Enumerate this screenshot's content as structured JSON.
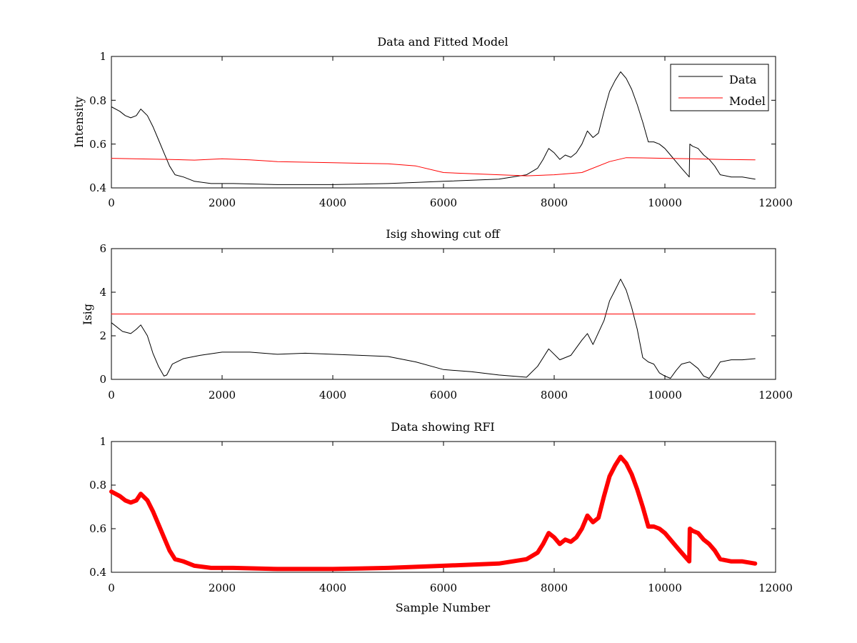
{
  "chart_data": [
    {
      "type": "line",
      "title": "Data and Fitted Model",
      "xlabel": "",
      "ylabel": "Intensity",
      "xlim": [
        0,
        12000
      ],
      "ylim": [
        0.4,
        1
      ],
      "xticks": [
        0,
        2000,
        4000,
        6000,
        8000,
        10000,
        12000
      ],
      "yticks": [
        0.4,
        0.6,
        0.8,
        1
      ],
      "xtick_labels": [
        "0",
        "2000",
        "4000",
        "6000",
        "8000",
        "10000",
        "12000"
      ],
      "ytick_labels": [
        "0.4",
        "0.6",
        "0.8",
        "1"
      ],
      "legend": "top-right",
      "grid": false,
      "series": [
        {
          "name": "Data",
          "color": "#000000",
          "x": [
            0,
            150,
            250,
            350,
            450,
            530,
            650,
            750,
            850,
            950,
            1050,
            1150,
            1300,
            1500,
            1800,
            2200,
            3000,
            4000,
            5000,
            6000,
            7000,
            7500,
            7700,
            7800,
            7900,
            8000,
            8100,
            8200,
            8300,
            8400,
            8500,
            8600,
            8700,
            8800,
            8900,
            9000,
            9100,
            9200,
            9300,
            9400,
            9500,
            9600,
            9700,
            9800,
            9900,
            10000,
            10100,
            10200,
            10300,
            10440,
            10450,
            10500,
            10600,
            10700,
            10800,
            10900,
            11000,
            11200,
            11400,
            11630
          ],
          "y": [
            0.77,
            0.75,
            0.73,
            0.72,
            0.73,
            0.76,
            0.73,
            0.68,
            0.62,
            0.56,
            0.5,
            0.46,
            0.45,
            0.43,
            0.42,
            0.42,
            0.415,
            0.415,
            0.42,
            0.43,
            0.44,
            0.46,
            0.49,
            0.53,
            0.58,
            0.56,
            0.53,
            0.55,
            0.54,
            0.56,
            0.6,
            0.66,
            0.63,
            0.65,
            0.75,
            0.84,
            0.89,
            0.93,
            0.9,
            0.85,
            0.78,
            0.7,
            0.61,
            0.61,
            0.6,
            0.58,
            0.55,
            0.52,
            0.49,
            0.45,
            0.6,
            0.59,
            0.58,
            0.55,
            0.53,
            0.5,
            0.46,
            0.45,
            0.45,
            0.44
          ]
        },
        {
          "name": "Model",
          "color": "#ff0000",
          "x": [
            0,
            1000,
            1500,
            2000,
            2500,
            3000,
            4000,
            5000,
            5500,
            6000,
            6500,
            7000,
            7500,
            8000,
            8500,
            9000,
            9300,
            9600,
            10000,
            10500,
            11000,
            11630
          ],
          "y": [
            0.535,
            0.53,
            0.527,
            0.533,
            0.528,
            0.52,
            0.515,
            0.51,
            0.5,
            0.47,
            0.465,
            0.46,
            0.455,
            0.46,
            0.47,
            0.52,
            0.538,
            0.537,
            0.535,
            0.533,
            0.53,
            0.528
          ]
        }
      ]
    },
    {
      "type": "line",
      "title": "Isig showing cut off",
      "xlabel": "",
      "ylabel": "Isig",
      "xlim": [
        0,
        12000
      ],
      "ylim": [
        0,
        6
      ],
      "xticks": [
        0,
        2000,
        4000,
        6000,
        8000,
        10000,
        12000
      ],
      "yticks": [
        0,
        2,
        4,
        6
      ],
      "xtick_labels": [
        "0",
        "2000",
        "4000",
        "6000",
        "8000",
        "10000",
        "12000"
      ],
      "ytick_labels": [
        "0",
        "2",
        "4",
        "6"
      ],
      "grid": false,
      "series": [
        {
          "color": "#000000",
          "x": [
            0,
            200,
            350,
            450,
            530,
            650,
            750,
            850,
            950,
            1000,
            1100,
            1300,
            1600,
            2000,
            2500,
            3000,
            3500,
            4000,
            4500,
            5000,
            5500,
            6000,
            6500,
            7000,
            7500,
            7700,
            7900,
            8100,
            8300,
            8500,
            8600,
            8700,
            8900,
            9000,
            9100,
            9200,
            9300,
            9400,
            9500,
            9600,
            9700,
            9800,
            9900,
            10000,
            10100,
            10200,
            10300,
            10450,
            10600,
            10700,
            10800,
            10900,
            11000,
            11200,
            11400,
            11630
          ],
          "y": [
            2.6,
            2.2,
            2.1,
            2.3,
            2.5,
            2.0,
            1.2,
            0.6,
            0.15,
            0.2,
            0.7,
            0.95,
            1.1,
            1.25,
            1.25,
            1.15,
            1.2,
            1.15,
            1.1,
            1.05,
            0.8,
            0.45,
            0.35,
            0.2,
            0.1,
            0.6,
            1.4,
            0.9,
            1.1,
            1.8,
            2.1,
            1.6,
            2.7,
            3.6,
            4.1,
            4.6,
            4.1,
            3.3,
            2.3,
            1.0,
            0.8,
            0.7,
            0.3,
            0.15,
            0.05,
            0.4,
            0.7,
            0.8,
            0.5,
            0.15,
            0.05,
            0.4,
            0.8,
            0.9,
            0.9,
            0.95
          ]
        },
        {
          "color": "#ff0000",
          "x": [
            0,
            11630
          ],
          "y": [
            3,
            3
          ]
        }
      ]
    },
    {
      "type": "line",
      "title": "Data showing RFI",
      "xlabel": "Sample Number",
      "ylabel": "",
      "xlim": [
        0,
        12000
      ],
      "ylim": [
        0.4,
        1
      ],
      "xticks": [
        0,
        2000,
        4000,
        6000,
        8000,
        10000,
        12000
      ],
      "yticks": [
        0.4,
        0.6,
        0.8,
        1
      ],
      "xtick_labels": [
        "0",
        "2000",
        "4000",
        "6000",
        "8000",
        "10000",
        "12000"
      ],
      "ytick_labels": [
        "0.4",
        "0.6",
        "0.8",
        "1"
      ],
      "grid": false,
      "series": [
        {
          "color": "#ff0000",
          "x": [
            0,
            150,
            250,
            350,
            450,
            530,
            650,
            750,
            850,
            950,
            1050,
            1150,
            1300,
            1500,
            1800,
            2200,
            3000,
            4000,
            5000,
            6000,
            7000,
            7500,
            7700,
            7800,
            7900,
            8000,
            8100,
            8200,
            8300,
            8400,
            8500,
            8600,
            8700,
            8800,
            8900,
            9000,
            9100,
            9200,
            9300,
            9400,
            9500,
            9600,
            9700,
            9800,
            9900,
            10000,
            10100,
            10200,
            10300,
            10440,
            10450,
            10500,
            10600,
            10700,
            10800,
            10900,
            11000,
            11200,
            11400,
            11630
          ],
          "y": [
            0.77,
            0.75,
            0.73,
            0.72,
            0.73,
            0.76,
            0.73,
            0.68,
            0.62,
            0.56,
            0.5,
            0.46,
            0.45,
            0.43,
            0.42,
            0.42,
            0.415,
            0.415,
            0.42,
            0.43,
            0.44,
            0.46,
            0.49,
            0.53,
            0.58,
            0.56,
            0.53,
            0.55,
            0.54,
            0.56,
            0.6,
            0.66,
            0.63,
            0.65,
            0.75,
            0.84,
            0.89,
            0.93,
            0.9,
            0.85,
            0.78,
            0.7,
            0.61,
            0.61,
            0.6,
            0.58,
            0.55,
            0.52,
            0.49,
            0.45,
            0.6,
            0.59,
            0.58,
            0.55,
            0.53,
            0.5,
            0.46,
            0.45,
            0.45,
            0.44
          ]
        }
      ]
    }
  ]
}
